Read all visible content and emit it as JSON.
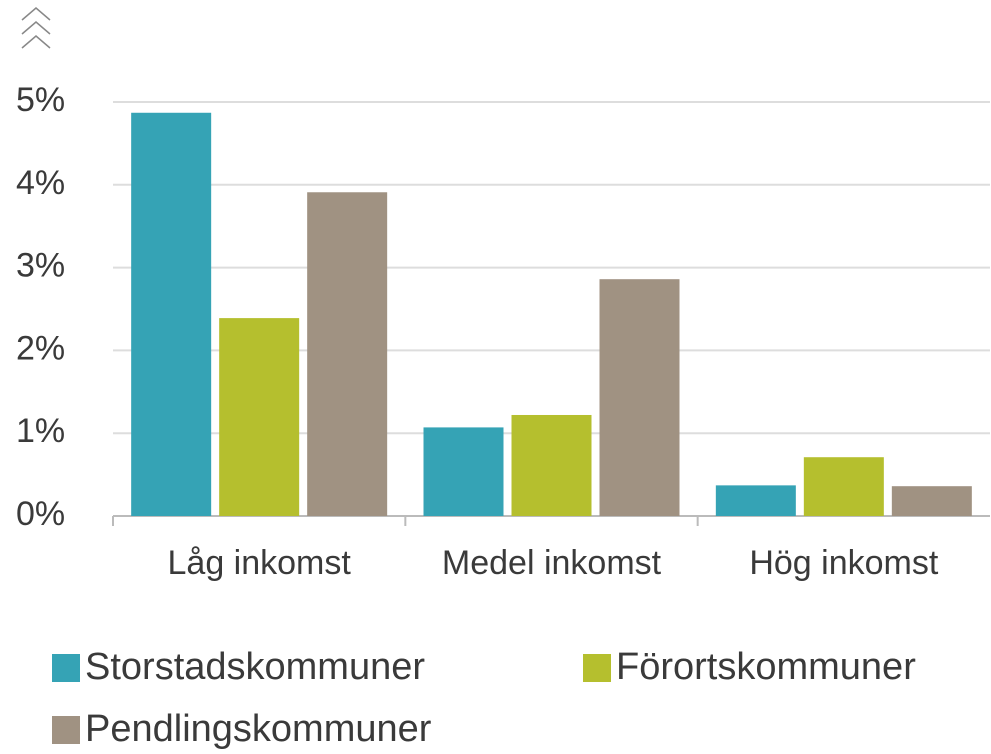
{
  "chart_data": {
    "type": "bar",
    "categories": [
      "Låg inkomst",
      "Medel inkomst",
      "Hög inkomst"
    ],
    "series": [
      {
        "name": "Storstadskommuner",
        "color": "#35a3b5",
        "values": [
          4.87,
          1.07,
          0.37
        ]
      },
      {
        "name": "Förortskommuner",
        "color": "#b5bf2e",
        "values": [
          2.39,
          1.22,
          0.71
        ]
      },
      {
        "name": "Pendlingskommuner",
        "color": "#a09282",
        "values": [
          3.91,
          2.86,
          0.36
        ]
      }
    ],
    "ylim": [
      0,
      5
    ],
    "yticks": [
      {
        "value": 0,
        "label": "0%"
      },
      {
        "value": 1,
        "label": "1%"
      },
      {
        "value": 2,
        "label": "2%"
      },
      {
        "value": 3,
        "label": "3%"
      },
      {
        "value": 4,
        "label": "4%"
      },
      {
        "value": 5,
        "label": "5%"
      }
    ],
    "grid": true
  }
}
